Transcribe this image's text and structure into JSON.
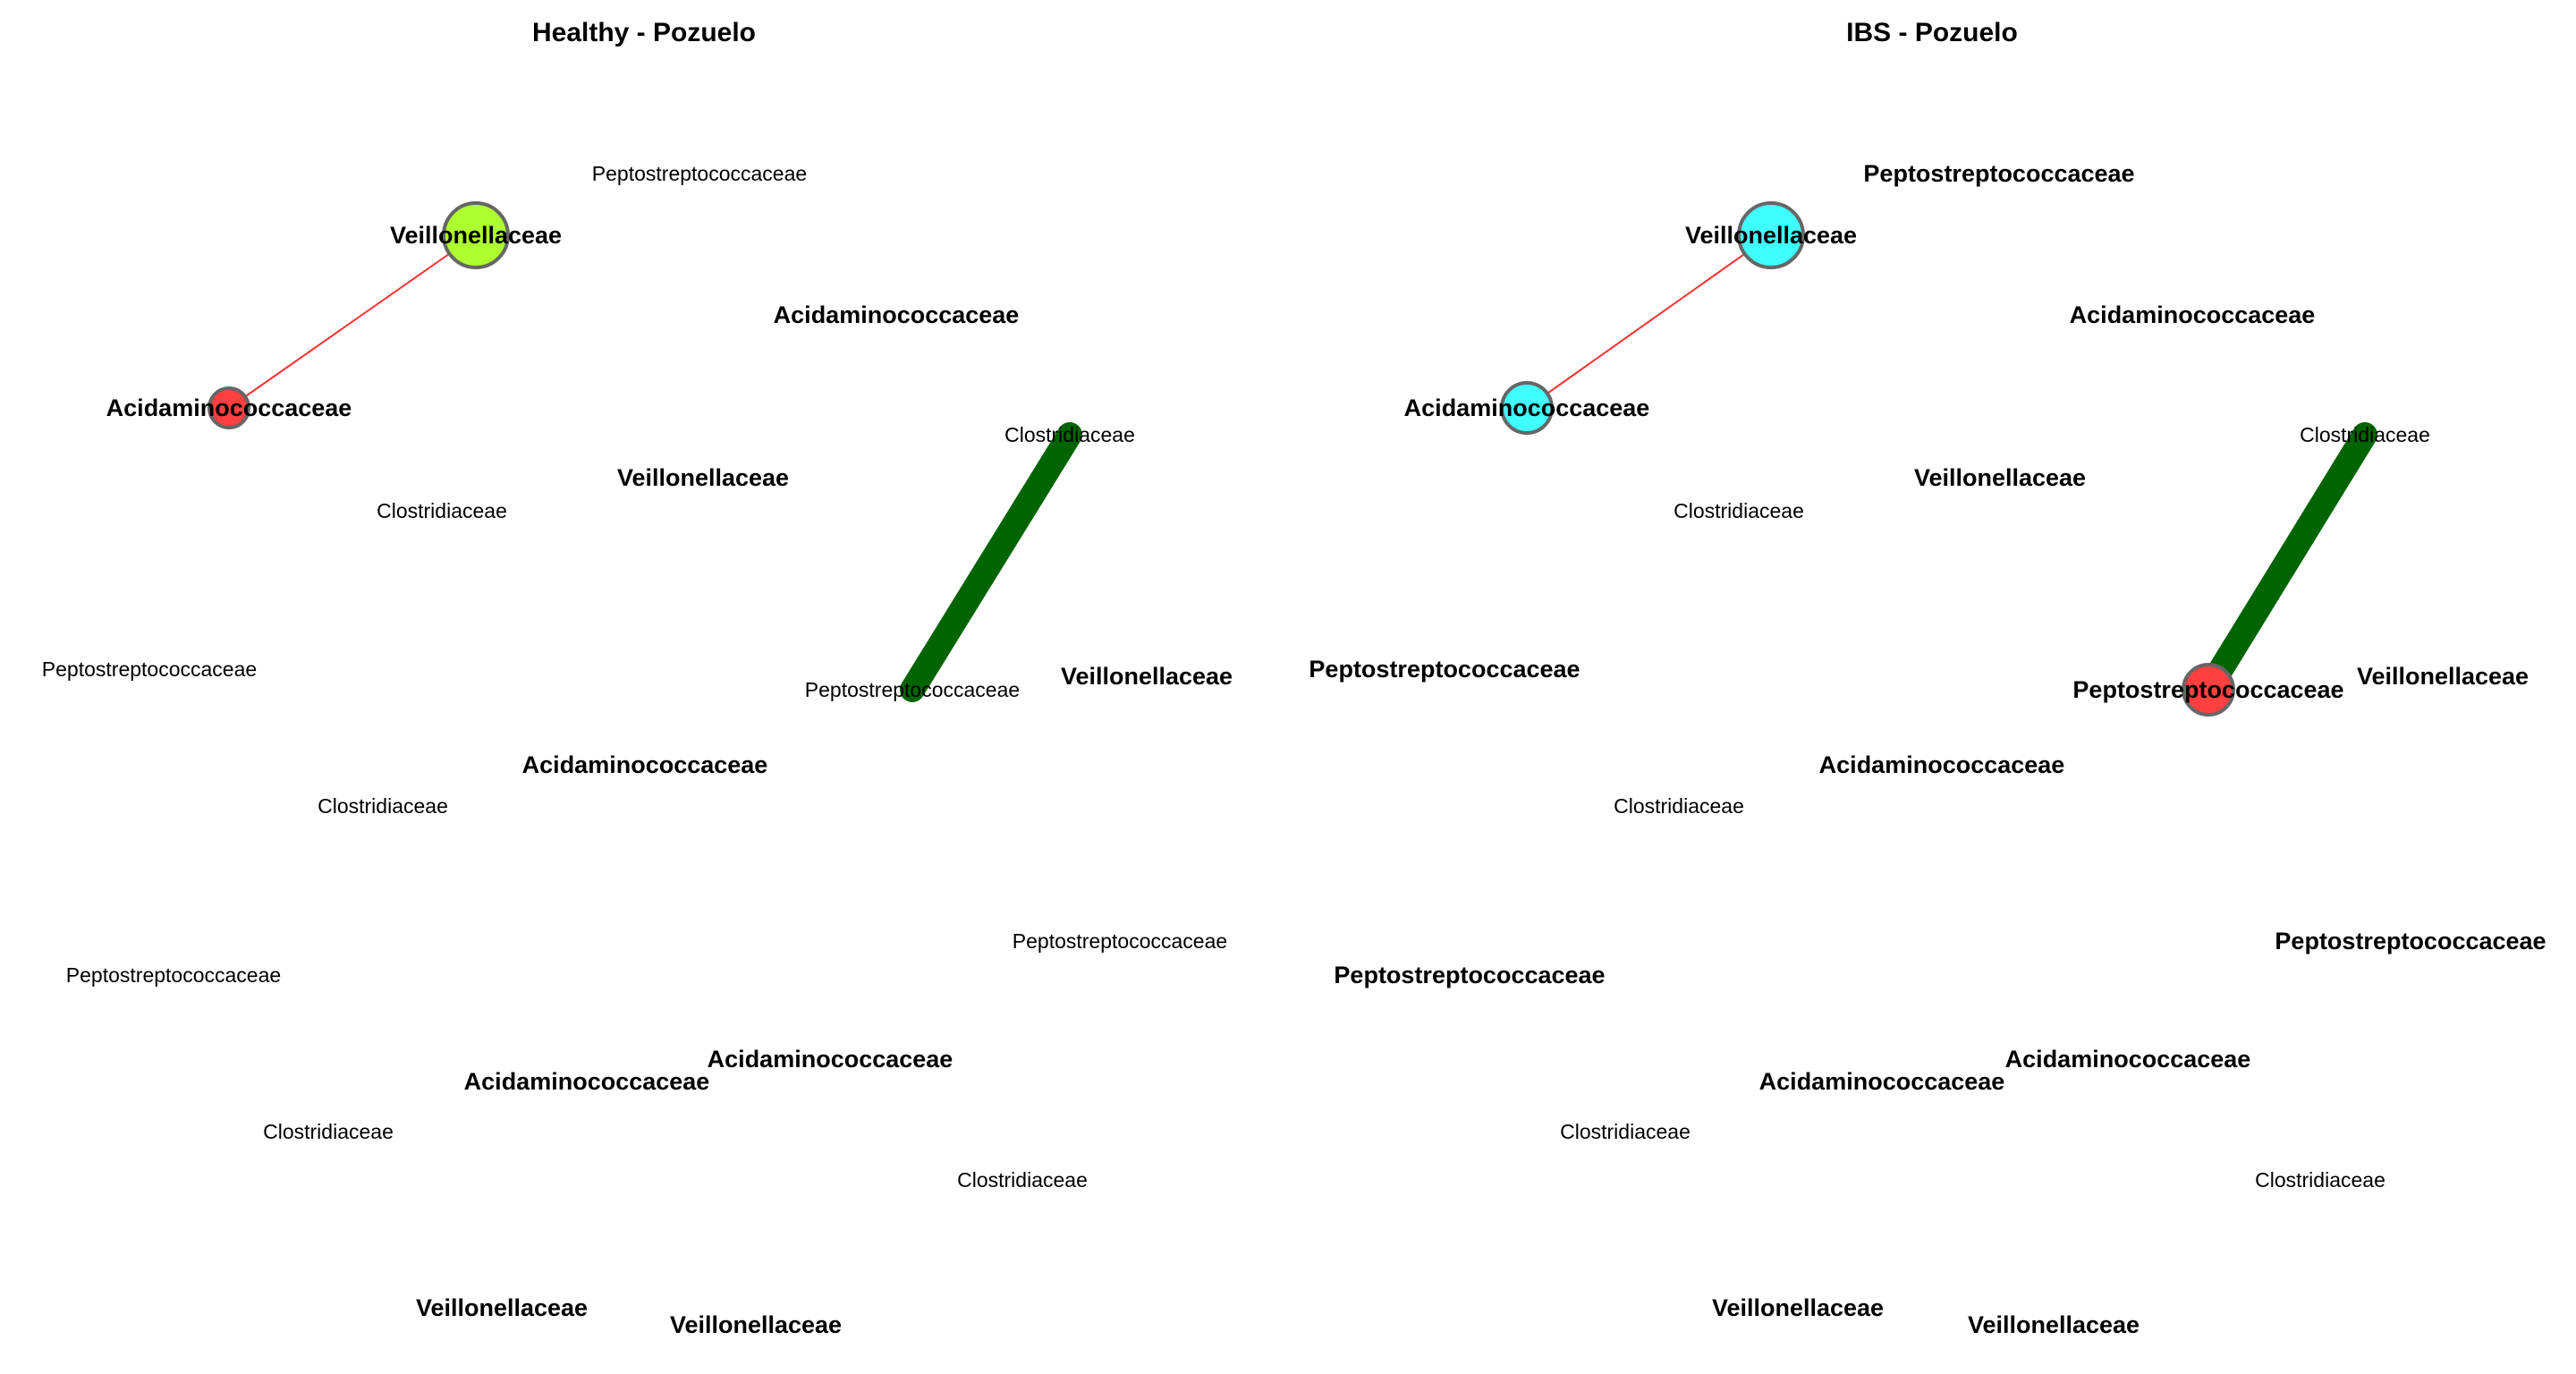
{
  "panels": [
    {
      "title": "Healthy - Pozuelo",
      "nodes": [
        {
          "id": "n1",
          "label": "Veillonellaceae",
          "bold": true,
          "circle": {
            "color": "#adff2f",
            "size": "large"
          }
        },
        {
          "id": "n2",
          "label": "Acidaminococcaceae",
          "bold": true,
          "circle": {
            "color": "#ff4040",
            "size": "small"
          }
        },
        {
          "id": "n3",
          "label": "Peptostreptococcaceae",
          "bold": false
        },
        {
          "id": "n4",
          "label": "Acidaminococcaceae",
          "bold": true
        },
        {
          "id": "n5",
          "label": "Clostridiaceae",
          "bold": false
        },
        {
          "id": "n6",
          "label": "Veillonellaceae",
          "bold": true
        },
        {
          "id": "n7",
          "label": "Clostridiaceae",
          "bold": false
        },
        {
          "id": "n8",
          "label": "Peptostreptococcaceae",
          "bold": false
        },
        {
          "id": "n9",
          "label": "Peptostreptococcaceae",
          "bold": false
        },
        {
          "id": "n10",
          "label": "Veillonellaceae",
          "bold": true
        },
        {
          "id": "n11",
          "label": "Acidaminococcaceae",
          "bold": true
        },
        {
          "id": "n12",
          "label": "Clostridiaceae",
          "bold": false
        },
        {
          "id": "n13",
          "label": "Peptostreptococcaceae",
          "bold": false
        },
        {
          "id": "n14",
          "label": "Peptostreptococcaceae",
          "bold": false
        },
        {
          "id": "n15",
          "label": "Acidaminococcaceae",
          "bold": true
        },
        {
          "id": "n16",
          "label": "Acidaminococcaceae",
          "bold": true
        },
        {
          "id": "n17",
          "label": "Clostridiaceae",
          "bold": false
        },
        {
          "id": "n18",
          "label": "Clostridiaceae",
          "bold": false
        },
        {
          "id": "n19",
          "label": "Veillonellaceae",
          "bold": true
        },
        {
          "id": "n20",
          "label": "Veillonellaceae",
          "bold": true
        }
      ],
      "edges": [
        {
          "from": "n1",
          "to": "n2",
          "color": "#ff3030",
          "weight": "thin"
        },
        {
          "from": "n5",
          "to": "n9",
          "color": "#006400",
          "weight": "thick"
        }
      ]
    },
    {
      "title": "IBS - Pozuelo",
      "nodes": [
        {
          "id": "n1",
          "label": "Veillonellaceae",
          "bold": true,
          "circle": {
            "color": "#40ffff",
            "size": "large"
          }
        },
        {
          "id": "n2",
          "label": "Acidaminococcaceae",
          "bold": true,
          "circle": {
            "color": "#40ffff",
            "size": "medium"
          }
        },
        {
          "id": "n3",
          "label": "Peptostreptococcaceae",
          "bold": true
        },
        {
          "id": "n4",
          "label": "Acidaminococcaceae",
          "bold": true
        },
        {
          "id": "n5",
          "label": "Clostridiaceae",
          "bold": false
        },
        {
          "id": "n6",
          "label": "Veillonellaceae",
          "bold": true
        },
        {
          "id": "n7",
          "label": "Clostridiaceae",
          "bold": false
        },
        {
          "id": "n8",
          "label": "Peptostreptococcaceae",
          "bold": true
        },
        {
          "id": "n9",
          "label": "Peptostreptococcaceae",
          "bold": true,
          "circle": {
            "color": "#ff4040",
            "size": "medium"
          }
        },
        {
          "id": "n10",
          "label": "Veillonellaceae",
          "bold": true
        },
        {
          "id": "n11",
          "label": "Acidaminococcaceae",
          "bold": true
        },
        {
          "id": "n12",
          "label": "Clostridiaceae",
          "bold": false
        },
        {
          "id": "n13",
          "label": "Peptostreptococcaceae",
          "bold": true
        },
        {
          "id": "n14",
          "label": "Peptostreptococcaceae",
          "bold": true
        },
        {
          "id": "n15",
          "label": "Acidaminococcaceae",
          "bold": true
        },
        {
          "id": "n16",
          "label": "Acidaminococcaceae",
          "bold": true
        },
        {
          "id": "n17",
          "label": "Clostridiaceae",
          "bold": false
        },
        {
          "id": "n18",
          "label": "Clostridiaceae",
          "bold": false
        },
        {
          "id": "n19",
          "label": "Veillonellaceae",
          "bold": true
        },
        {
          "id": "n20",
          "label": "Veillonellaceae",
          "bold": true
        }
      ],
      "edges": [
        {
          "from": "n1",
          "to": "n2",
          "color": "#ff3030",
          "weight": "thin"
        },
        {
          "from": "n5",
          "to": "n9",
          "color": "#006400",
          "weight": "thick"
        }
      ]
    }
  ]
}
